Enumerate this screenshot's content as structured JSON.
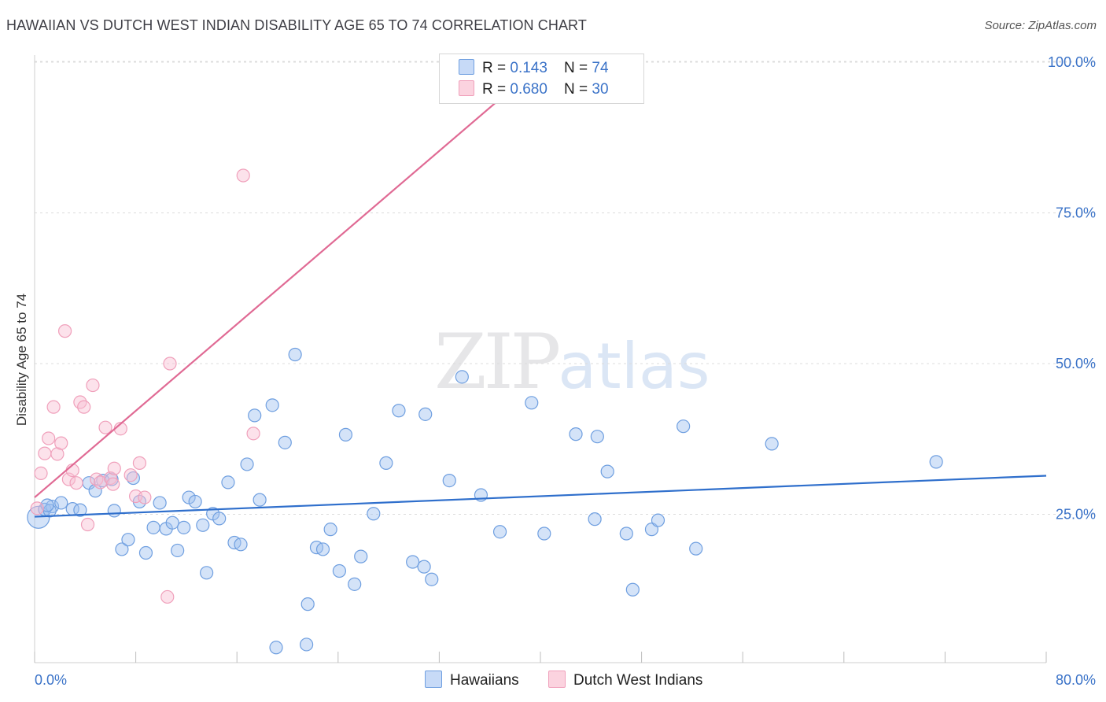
{
  "title": "HAWAIIAN VS DUTCH WEST INDIAN DISABILITY AGE 65 TO 74 CORRELATION CHART",
  "source": "Source: ZipAtlas.com",
  "watermark": {
    "zip": "ZIP",
    "atlas": "atlas"
  },
  "legend": {
    "rows": [
      {
        "r_label": "R = ",
        "r_value": "0.143",
        "n_label": "N = ",
        "n_value": "74"
      },
      {
        "r_label": "R = ",
        "r_value": "0.680",
        "n_label": "N = ",
        "n_value": "30"
      }
    ]
  },
  "bottom_legend": [
    "Hawaiians",
    "Dutch West Indians"
  ],
  "chart_data": {
    "type": "scatter",
    "title": "HAWAIIAN VS DUTCH WEST INDIAN DISABILITY AGE 65 TO 74 CORRELATION CHART",
    "ylabel": "Disability Age 65 to 74",
    "xlim": [
      0,
      80
    ],
    "ylim": [
      0,
      100
    ],
    "x_tick_labels": [
      "0.0%",
      "80.0%"
    ],
    "y_ticks": [
      25,
      50,
      75,
      100
    ],
    "y_tick_labels": [
      "25.0%",
      "50.0%",
      "75.0%",
      "100.0%"
    ],
    "grid": true,
    "legend_placement": "top-center",
    "colors": {
      "Hawaiians": "#6f9fe0",
      "Dutch West Indians": "#f0a0bb",
      "blue_line": "#2f6fcc",
      "pink_line": "#e06a94"
    },
    "series": [
      {
        "name": "Hawaiians",
        "R": 0.143,
        "N": 74,
        "trend": {
          "x": [
            0,
            80
          ],
          "y": [
            24.6,
            31.4
          ]
        },
        "points": [
          [
            0.3,
            24.5
          ],
          [
            0.8,
            25.8
          ],
          [
            1.4,
            26.3
          ],
          [
            2.1,
            26.9
          ],
          [
            1.2,
            25.6
          ],
          [
            3.0,
            25.9
          ],
          [
            3.6,
            25.7
          ],
          [
            4.3,
            30.2
          ],
          [
            4.8,
            28.9
          ],
          [
            5.4,
            30.6
          ],
          [
            6.1,
            30.8
          ],
          [
            6.3,
            25.6
          ],
          [
            6.9,
            19.2
          ],
          [
            7.4,
            20.8
          ],
          [
            7.8,
            31.0
          ],
          [
            8.3,
            27.1
          ],
          [
            8.8,
            18.6
          ],
          [
            9.4,
            22.8
          ],
          [
            9.9,
            26.9
          ],
          [
            10.4,
            22.6
          ],
          [
            10.9,
            23.6
          ],
          [
            11.3,
            19.0
          ],
          [
            11.8,
            22.8
          ],
          [
            12.2,
            27.8
          ],
          [
            12.7,
            27.1
          ],
          [
            13.3,
            23.2
          ],
          [
            13.6,
            15.3
          ],
          [
            14.1,
            25.1
          ],
          [
            14.6,
            24.3
          ],
          [
            15.3,
            30.3
          ],
          [
            15.8,
            20.3
          ],
          [
            16.3,
            20.0
          ],
          [
            16.8,
            33.3
          ],
          [
            17.4,
            41.4
          ],
          [
            17.8,
            27.4
          ],
          [
            18.8,
            43.1
          ],
          [
            19.1,
            2.9
          ],
          [
            19.8,
            36.9
          ],
          [
            20.6,
            51.5
          ],
          [
            21.5,
            3.4
          ],
          [
            21.6,
            10.1
          ],
          [
            22.3,
            19.5
          ],
          [
            22.8,
            19.2
          ],
          [
            23.4,
            22.5
          ],
          [
            24.1,
            15.6
          ],
          [
            24.6,
            38.2
          ],
          [
            25.3,
            13.4
          ],
          [
            25.8,
            18.0
          ],
          [
            26.8,
            25.1
          ],
          [
            27.8,
            33.5
          ],
          [
            28.8,
            42.2
          ],
          [
            29.9,
            17.1
          ],
          [
            30.8,
            16.3
          ],
          [
            30.9,
            41.6
          ],
          [
            31.4,
            14.2
          ],
          [
            32.8,
            30.6
          ],
          [
            33.8,
            47.8
          ],
          [
            35.3,
            28.2
          ],
          [
            36.8,
            22.1
          ],
          [
            39.3,
            43.5
          ],
          [
            40.3,
            21.8
          ],
          [
            42.8,
            38.3
          ],
          [
            44.3,
            24.2
          ],
          [
            44.5,
            37.9
          ],
          [
            45.3,
            32.1
          ],
          [
            46.8,
            21.8
          ],
          [
            47.3,
            12.5
          ],
          [
            48.8,
            22.5
          ],
          [
            49.3,
            24.0
          ],
          [
            51.3,
            39.6
          ],
          [
            52.3,
            19.3
          ],
          [
            58.3,
            36.7
          ],
          [
            71.3,
            33.7
          ],
          [
            1.0,
            26.5
          ]
        ]
      },
      {
        "name": "Dutch West Indians",
        "R": 0.68,
        "N": 30,
        "trend": {
          "x": [
            0,
            40.2
          ],
          "y": [
            27.8,
            100
          ]
        },
        "points": [
          [
            0.2,
            26.0
          ],
          [
            0.5,
            31.8
          ],
          [
            0.8,
            35.1
          ],
          [
            1.1,
            37.6
          ],
          [
            1.5,
            42.8
          ],
          [
            1.8,
            35.0
          ],
          [
            2.1,
            36.8
          ],
          [
            2.4,
            55.4
          ],
          [
            2.7,
            30.8
          ],
          [
            3.0,
            32.3
          ],
          [
            3.3,
            30.2
          ],
          [
            3.6,
            43.6
          ],
          [
            3.9,
            42.8
          ],
          [
            4.2,
            23.3
          ],
          [
            4.6,
            46.4
          ],
          [
            4.9,
            30.8
          ],
          [
            5.2,
            30.3
          ],
          [
            5.6,
            39.4
          ],
          [
            6.0,
            31.0
          ],
          [
            6.2,
            30.0
          ],
          [
            6.3,
            32.6
          ],
          [
            6.8,
            39.2
          ],
          [
            7.6,
            31.5
          ],
          [
            8.0,
            28.0
          ],
          [
            8.3,
            33.5
          ],
          [
            8.7,
            27.8
          ],
          [
            10.5,
            11.3
          ],
          [
            10.7,
            50.0
          ],
          [
            16.5,
            81.2
          ],
          [
            17.3,
            38.4
          ]
        ]
      }
    ]
  }
}
